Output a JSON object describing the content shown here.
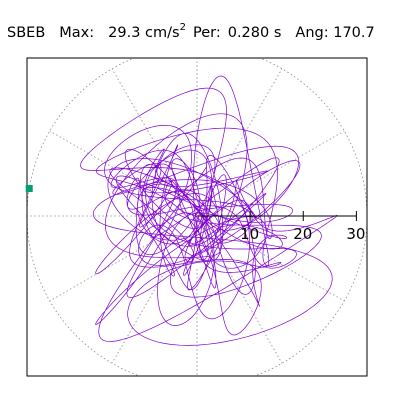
{
  "header": {
    "station": "SBEB",
    "max_label": "Max:",
    "max_value": "29.3",
    "max_unit": "cm/s",
    "max_unit_exp": "2",
    "per_label": "Per:",
    "per_value": "0.280 s",
    "ang_label": "Ang:",
    "ang_value": "170.7"
  },
  "chart_data": {
    "type": "polar-orbit",
    "radial_ticks": [
      "10",
      "20",
      "30"
    ],
    "radial_tick_values": [
      10,
      20,
      30
    ],
    "r_max": 32,
    "angular_gridlines_deg": [
      0,
      30,
      60,
      90,
      120,
      150,
      180,
      210,
      240,
      270,
      300,
      330
    ],
    "grid": true,
    "peak_value": 29.3,
    "peak_angle_deg": 170.7,
    "trace_color": "#8000d0",
    "marker_color": "#00a070",
    "grid_color": "#888888"
  }
}
